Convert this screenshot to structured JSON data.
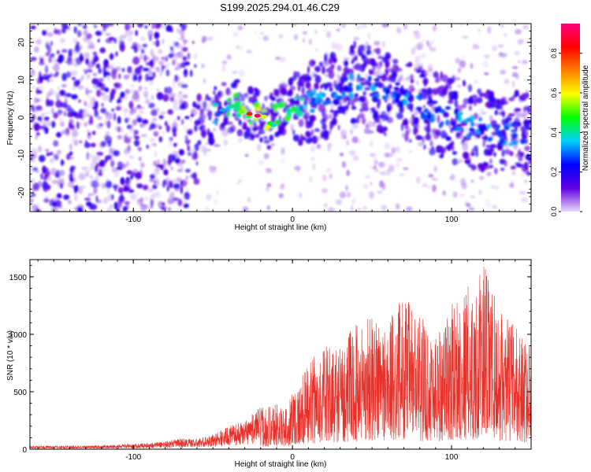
{
  "title": "S199.2025.294.01.46.C29",
  "chart_data": [
    {
      "type": "heatmap",
      "xlabel": "Height of straight line (km)",
      "ylabel": "Frequency (Hz)",
      "xlim": [
        -165,
        150
      ],
      "ylim": [
        -25,
        25
      ],
      "xticks": [
        -100,
        0,
        100
      ],
      "xtick_labels": [
        "-100",
        "0",
        "100"
      ],
      "yticks": [
        -20,
        -10,
        0,
        10,
        20
      ],
      "ytick_labels": [
        "-20",
        "-10",
        "0",
        "10",
        "20"
      ],
      "colorbar": {
        "label": "Normalized spectral amplitude",
        "range": [
          0.0,
          0.95
        ],
        "ticks": [
          0.0,
          0.2,
          0.4,
          0.6,
          0.8
        ],
        "tick_labels": [
          "0.0",
          "0.2",
          "0.4",
          "0.6",
          "0.8"
        ],
        "colormap": [
          "#e8d8f8",
          "#6000e0",
          "#0000ff",
          "#00d0ff",
          "#00ff00",
          "#ffff00",
          "#ff8000",
          "#ff0000",
          "#ff0080"
        ]
      },
      "peak_ridge": {
        "x": [
          -55,
          -45,
          -35,
          -28,
          -22,
          -16,
          -10,
          -2,
          8,
          18,
          28,
          40,
          55,
          70,
          90,
          110,
          130,
          145
        ],
        "y": [
          -1,
          2,
          3,
          1,
          1,
          -2,
          1,
          3,
          4,
          5,
          7,
          9,
          7,
          4,
          1,
          -2,
          -5,
          -4
        ]
      }
    },
    {
      "type": "line",
      "xlabel": "Height of straight line (km)",
      "ylabel": "SNR (10 * v/v)",
      "xlim": [
        -165,
        150
      ],
      "ylim": [
        0,
        1650
      ],
      "xticks": [
        -100,
        0,
        100
      ],
      "xtick_labels": [
        "-100",
        "0",
        "100"
      ],
      "yticks": [
        0,
        500,
        1000,
        1500
      ],
      "ytick_labels": [
        "0",
        "500",
        "1000",
        "1500"
      ],
      "series": [
        {
          "name": "SNR",
          "color": "#e8302a",
          "envelope_x": [
            -165,
            -140,
            -120,
            -100,
            -80,
            -70,
            -60,
            -50,
            -40,
            -30,
            -20,
            -10,
            -5,
            0,
            5,
            10,
            20,
            30,
            40,
            50,
            60,
            70,
            80,
            90,
            100,
            110,
            115,
            120,
            130,
            140,
            150
          ],
          "envelope_y": [
            30,
            30,
            35,
            45,
            70,
            95,
            90,
            130,
            200,
            250,
            370,
            420,
            330,
            540,
            600,
            760,
            900,
            920,
            1110,
            1200,
            1120,
            1370,
            1170,
            1050,
            1270,
            1450,
            1350,
            1660,
            1200,
            1100,
            900
          ]
        }
      ]
    }
  ]
}
